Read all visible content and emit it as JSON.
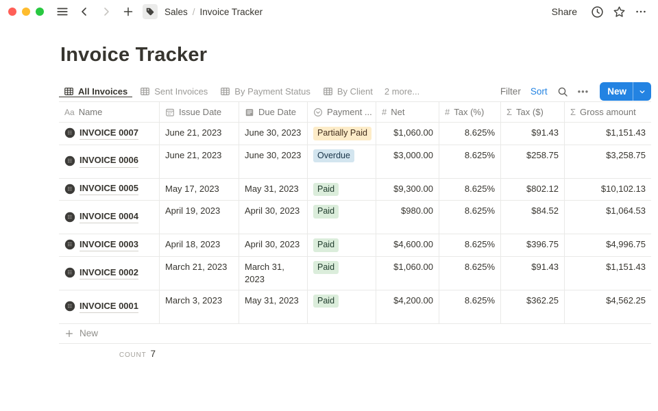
{
  "chrome": {
    "breadcrumb": {
      "workspace": "Sales",
      "separator": "/",
      "page": "Invoice Tracker"
    },
    "share_label": "Share",
    "icons": [
      "sidebar-menu-icon",
      "chevron-left-icon",
      "chevron-right-icon",
      "plus-icon",
      "tag-icon",
      "clock-icon",
      "star-icon",
      "ellipsis-icon"
    ]
  },
  "page": {
    "title": "Invoice Tracker"
  },
  "views": {
    "tabs": [
      {
        "label": "All Invoices",
        "icon": "table",
        "active": true
      },
      {
        "label": "Sent Invoices",
        "icon": "table",
        "active": false
      },
      {
        "label": "By Payment Status",
        "icon": "table",
        "active": false
      },
      {
        "label": "By Client",
        "icon": "table",
        "active": false
      }
    ],
    "more_label": "2 more..."
  },
  "toolbar": {
    "filter_label": "Filter",
    "sort_label": "Sort",
    "search_icon": "search-icon",
    "more_icon": "ellipsis-icon",
    "new_label": "New"
  },
  "table": {
    "columns": [
      {
        "label": "Name",
        "icon": "text",
        "align": "left"
      },
      {
        "label": "Issue Date",
        "icon": "calendar",
        "align": "left"
      },
      {
        "label": "Due Date",
        "icon": "document",
        "align": "left"
      },
      {
        "label": "Payment ...",
        "icon": "select",
        "align": "left"
      },
      {
        "label": "Net",
        "icon": "hash",
        "align": "right"
      },
      {
        "label": "Tax (%)",
        "icon": "hash",
        "align": "right"
      },
      {
        "label": "Tax ($)",
        "icon": "sigma",
        "align": "right"
      },
      {
        "label": "Gross amount",
        "icon": "sigma",
        "align": "right"
      }
    ],
    "rows": [
      {
        "name": "INVOICE 0007",
        "icon": "invoice-page-icon",
        "issue_date": "June 21, 2023",
        "due_date": "June 30, 2023",
        "status": "Partially Paid",
        "status_color": "yellow",
        "net": "$1,060.00",
        "tax_pct": "8.625%",
        "tax_usd": "$91.43",
        "gross": "$1,151.43",
        "tall": false
      },
      {
        "name": "INVOICE 0006",
        "icon": "invoice-page-icon",
        "issue_date": "June 21, 2023",
        "due_date": "June 30, 2023",
        "status": "Overdue",
        "status_color": "blue",
        "net": "$3,000.00",
        "tax_pct": "8.625%",
        "tax_usd": "$258.75",
        "gross": "$3,258.75",
        "tall": true
      },
      {
        "name": "INVOICE 0005",
        "icon": "invoice-page-icon",
        "issue_date": "May 17, 2023",
        "due_date": "May 31, 2023",
        "status": "Paid",
        "status_color": "green",
        "net": "$9,300.00",
        "tax_pct": "8.625%",
        "tax_usd": "$802.12",
        "gross": "$10,102.13",
        "tall": false
      },
      {
        "name": "INVOICE 0004",
        "icon": "invoice-page-icon",
        "issue_date": "April 19, 2023",
        "due_date": "April 30, 2023",
        "status": "Paid",
        "status_color": "green",
        "net": "$980.00",
        "tax_pct": "8.625%",
        "tax_usd": "$84.52",
        "gross": "$1,064.53",
        "tall": true
      },
      {
        "name": "INVOICE 0003",
        "icon": "invoice-page-icon",
        "issue_date": "April 18, 2023",
        "due_date": "April 30, 2023",
        "status": "Paid",
        "status_color": "green",
        "net": "$4,600.00",
        "tax_pct": "8.625%",
        "tax_usd": "$396.75",
        "gross": "$4,996.75",
        "tall": false
      },
      {
        "name": "INVOICE 0002",
        "icon": "invoice-page-icon",
        "issue_date": "March 21, 2023",
        "due_date": "March 31, 2023",
        "status": "Paid",
        "status_color": "green",
        "net": "$1,060.00",
        "tax_pct": "8.625%",
        "tax_usd": "$91.43",
        "gross": "$1,151.43",
        "tall": true
      },
      {
        "name": "INVOICE 0001",
        "icon": "invoice-page-icon",
        "issue_date": "March 3, 2023",
        "due_date": "May 31, 2023",
        "status": "Paid",
        "status_color": "green",
        "net": "$4,200.00",
        "tax_pct": "8.625%",
        "tax_usd": "$362.25",
        "gross": "$4,562.25",
        "tall": true
      }
    ],
    "new_row_label": "New",
    "footer": {
      "count_label": "count",
      "count_value": "7"
    }
  },
  "colors": {
    "accent_blue": "#2383e2",
    "text_primary": "#37352f",
    "text_secondary": "#787774",
    "border": "#e9e9e7",
    "badge_yellow_bg": "#fdecc8",
    "badge_blue_bg": "#d3e5ef",
    "badge_green_bg": "#dbeddb",
    "traffic_red": "#ff5f57",
    "traffic_yellow": "#febc2e",
    "traffic_green": "#28c840"
  }
}
